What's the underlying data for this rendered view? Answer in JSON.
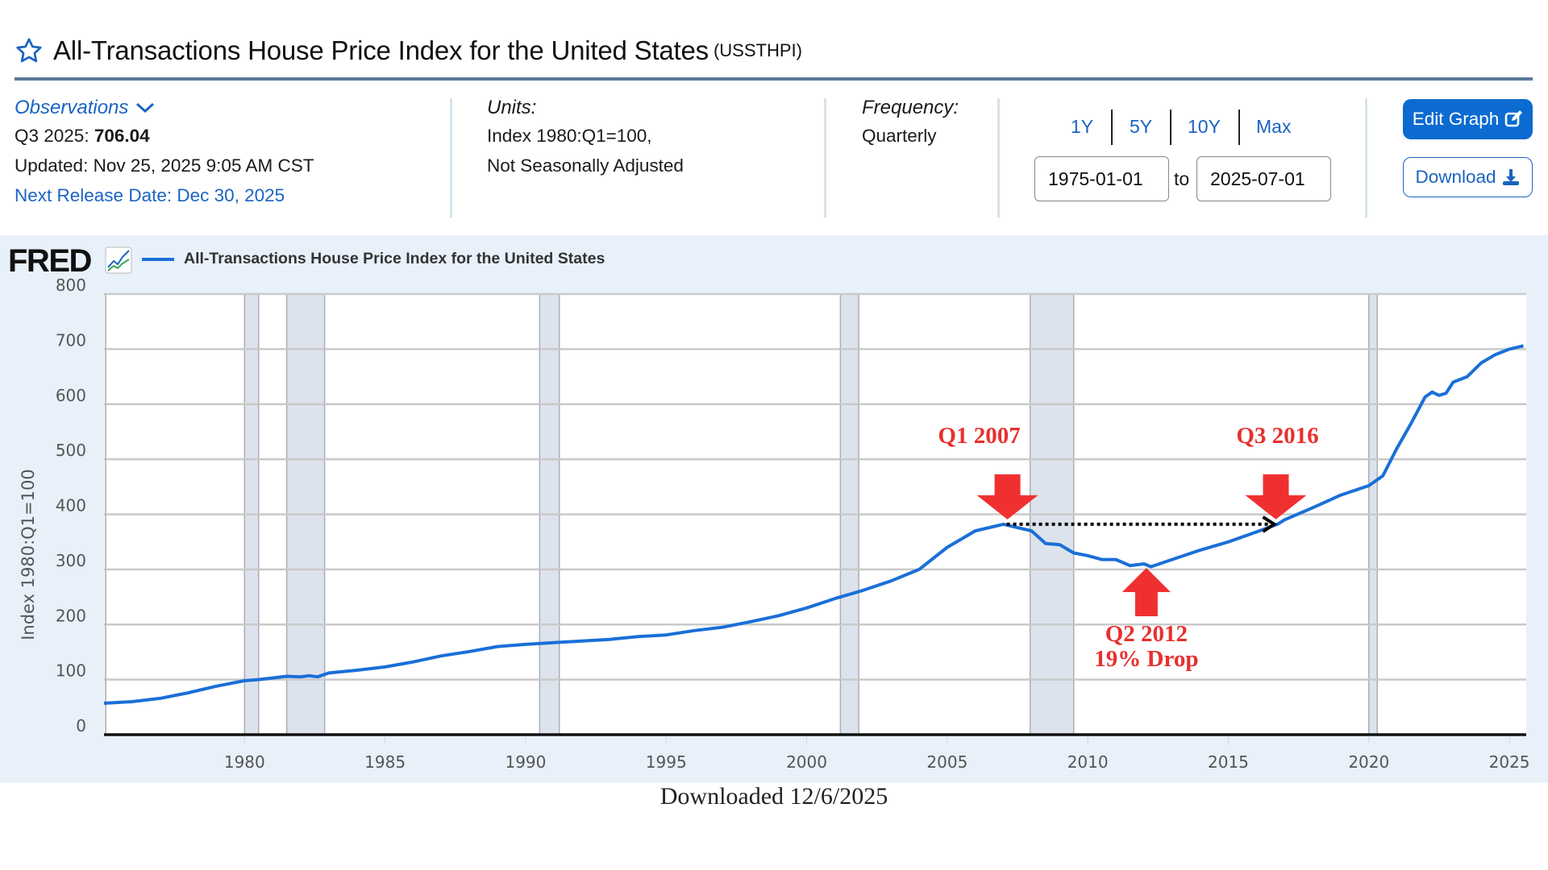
{
  "header": {
    "title": "All-Transactions House Price Index for the United States",
    "series_id": "(USSTHPI)",
    "star_icon": "star-outline-icon"
  },
  "observations": {
    "label": "Observations",
    "latest_period": "Q3 2025:",
    "latest_value": "706.04",
    "updated": "Updated: Nov 25, 2025 9:05 AM CST",
    "next_release": "Next Release Date: Dec 30, 2025"
  },
  "units": {
    "label": "Units:",
    "line1": "Index 1980:Q1=100,",
    "line2": "Not Seasonally Adjusted"
  },
  "frequency": {
    "label": "Frequency:",
    "value": "Quarterly"
  },
  "range": {
    "presets": [
      "1Y",
      "5Y",
      "10Y",
      "Max"
    ],
    "start": "1975-01-01",
    "to_label": "to",
    "end": "2025-07-01"
  },
  "buttons": {
    "edit_graph": "Edit Graph",
    "download": "Download"
  },
  "chart_header": {
    "logo": "FRED",
    "legend_label": "All-Transactions House Price Index for the United States"
  },
  "footer": {
    "downloaded": "Downloaded 12/6/2025"
  },
  "colors": {
    "series": "#1a6fd8",
    "recession": "#dde3ec",
    "annotation": "#f03030",
    "accent": "#0b6bd1"
  },
  "chart_data": {
    "type": "line",
    "title": "All-Transactions House Price Index for the United States",
    "xlabel": "",
    "ylabel": "Index 1980:Q1=100",
    "xlim": [
      1975,
      2025.6
    ],
    "ylim": [
      0,
      800
    ],
    "yticks": [
      0,
      100,
      200,
      300,
      400,
      500,
      600,
      700,
      800
    ],
    "xticks": [
      1980,
      1985,
      1990,
      1995,
      2000,
      2005,
      2010,
      2015,
      2020,
      2025
    ],
    "grid": true,
    "legend": "top-left",
    "recessions": [
      [
        1980.0,
        1980.5
      ],
      [
        1981.5,
        1982.85
      ],
      [
        1990.5,
        1991.2
      ],
      [
        2001.2,
        2001.85
      ],
      [
        2007.95,
        2009.5
      ],
      [
        2020.0,
        2020.3
      ]
    ],
    "series": [
      {
        "name": "All-Transactions House Price Index for the United States",
        "x": [
          1975,
          1976,
          1977,
          1978,
          1979,
          1980,
          1980.5,
          1981,
          1981.5,
          1982,
          1982.3,
          1982.6,
          1983,
          1984,
          1985,
          1986,
          1987,
          1988,
          1989,
          1990,
          1991,
          1992,
          1993,
          1994,
          1995,
          1996,
          1997,
          1998,
          1999,
          2000,
          2001,
          2002,
          2003,
          2004,
          2005,
          2006,
          2007,
          2007.5,
          2008,
          2008.5,
          2009,
          2009.5,
          2010,
          2010.5,
          2011,
          2011.5,
          2012,
          2012.25,
          2013,
          2014,
          2015,
          2016,
          2016.75,
          2017,
          2018,
          2019,
          2020,
          2020.5,
          2021,
          2021.5,
          2022,
          2022.25,
          2022.5,
          2022.75,
          2023,
          2023.5,
          2024,
          2024.5,
          2025,
          2025.5
        ],
        "values": [
          57,
          60,
          66,
          76,
          88,
          98,
          100,
          103,
          106,
          105,
          107,
          105,
          112,
          117,
          123,
          132,
          143,
          151,
          160,
          164,
          167,
          170,
          173,
          178,
          181,
          189,
          195,
          205,
          216,
          230,
          247,
          262,
          279,
          300,
          340,
          370,
          382,
          376,
          370,
          347,
          345,
          330,
          325,
          318,
          318,
          307,
          310,
          305,
          318,
          335,
          350,
          368,
          382,
          390,
          412,
          435,
          452,
          470,
          520,
          565,
          613,
          622,
          616,
          620,
          640,
          650,
          675,
          690,
          700,
          706
        ]
      }
    ],
    "annotations": [
      {
        "text": "Q1 2007",
        "x": 2007.0,
        "value": 382,
        "arrow": "down"
      },
      {
        "text": "Q3 2016",
        "x": 2016.75,
        "value": 382,
        "arrow": "down"
      },
      {
        "text": "Q2 2012",
        "text2": "19% Drop",
        "x": 2012.0,
        "value": 310,
        "arrow": "up"
      }
    ]
  }
}
